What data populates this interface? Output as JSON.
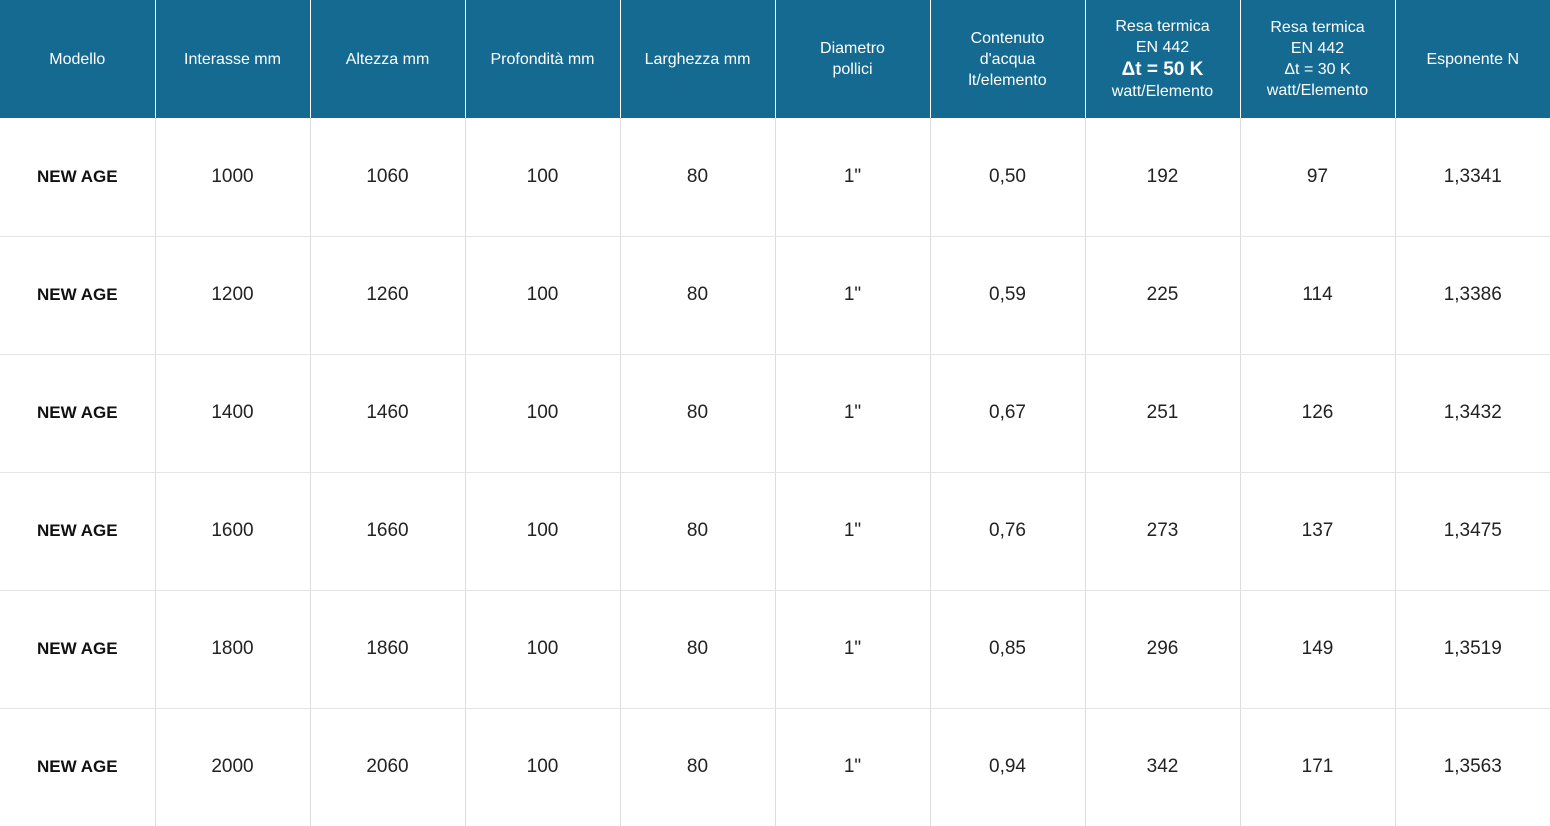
{
  "table": {
    "headers": {
      "modello": "Modello",
      "interasse": "Interasse mm",
      "altezza": "Altezza mm",
      "profondita": "Profondità mm",
      "larghezza": "Larghezza mm",
      "diametro": [
        "Diametro",
        "pollici"
      ],
      "contenuto": [
        "Contenuto",
        "d'acqua",
        "lt/elemento"
      ],
      "resa50": [
        "Resa termica",
        "EN 442",
        "Δt = 50 K",
        "watt/Elemento"
      ],
      "resa30": [
        "Resa termica",
        "EN 442",
        "Δt = 30 K",
        "watt/Elemento"
      ],
      "esponente": "Esponente N"
    },
    "rows": [
      [
        "NEW AGE",
        "1000",
        "1060",
        "100",
        "80",
        "1\"",
        "0,50",
        "192",
        "97",
        "1,3341"
      ],
      [
        "NEW AGE",
        "1200",
        "1260",
        "100",
        "80",
        "1\"",
        "0,59",
        "225",
        "114",
        "1,3386"
      ],
      [
        "NEW AGE",
        "1400",
        "1460",
        "100",
        "80",
        "1\"",
        "0,67",
        "251",
        "126",
        "1,3432"
      ],
      [
        "NEW AGE",
        "1600",
        "1660",
        "100",
        "80",
        "1\"",
        "0,76",
        "273",
        "137",
        "1,3475"
      ],
      [
        "NEW AGE",
        "1800",
        "1860",
        "100",
        "80",
        "1\"",
        "0,85",
        "296",
        "149",
        "1,3519"
      ],
      [
        "NEW AGE",
        "2000",
        "2060",
        "100",
        "80",
        "1\"",
        "0,94",
        "342",
        "171",
        "1,3563"
      ]
    ]
  },
  "colors": {
    "header_bg": "#146a91",
    "header_text": "#ffffff",
    "grid": "#dddddd"
  }
}
